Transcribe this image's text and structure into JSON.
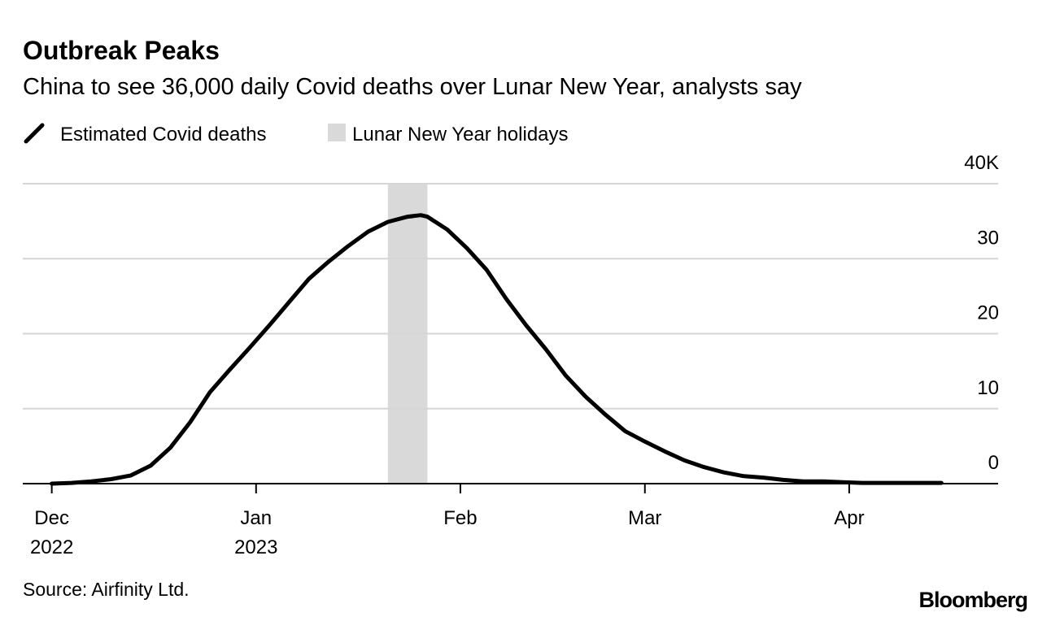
{
  "chart_data": {
    "type": "line",
    "title": "Outbreak Peaks",
    "subtitle": "China to see 36,000 daily Covid deaths over Lunar New Year, analysts say",
    "source": "Source: Airfinity Ltd.",
    "brand": "Bloomberg",
    "x": [
      0,
      3,
      6,
      9,
      12,
      15,
      18,
      21,
      24,
      27,
      30,
      33,
      36,
      39,
      42,
      45,
      48,
      51,
      54,
      56,
      57,
      60,
      63,
      66,
      69,
      72,
      75,
      78,
      81,
      84,
      87,
      90,
      93,
      96,
      99,
      102,
      105,
      108,
      111,
      114,
      117,
      120,
      123,
      126,
      129,
      132,
      135
    ],
    "series": [
      {
        "name": "Estimated Covid deaths",
        "color": "#000000",
        "values": [
          0,
          0.1,
          0.3,
          0.6,
          1.1,
          2.4,
          4.8,
          8.2,
          12.2,
          15.2,
          18.1,
          21.1,
          24.2,
          27.3,
          29.6,
          31.7,
          33.6,
          34.9,
          35.6,
          35.8,
          35.6,
          33.9,
          31.4,
          28.5,
          24.6,
          21.1,
          17.9,
          14.4,
          11.6,
          9.2,
          7.0,
          5.6,
          4.3,
          3.1,
          2.2,
          1.5,
          1.0,
          0.8,
          0.5,
          0.3,
          0.3,
          0.2,
          0.1,
          0.1,
          0.1,
          0.1,
          0.1
        ]
      }
    ],
    "bands": [
      {
        "name": "Lunar New Year holidays",
        "color": "#d9d9d9",
        "range": [
          51,
          57
        ]
      }
    ],
    "xlim": [
      -4.4,
      143.6
    ],
    "xticks": [
      {
        "value": 0,
        "label": "Dec 2022"
      },
      {
        "value": 31,
        "label": "Jan 2023"
      },
      {
        "value": 62,
        "label": "Feb"
      },
      {
        "value": 90,
        "label": "Mar"
      },
      {
        "value": 121,
        "label": "Apr"
      }
    ],
    "ylim": [
      0,
      40
    ],
    "yticks": [
      0,
      10,
      20,
      30,
      {
        "value": 40,
        "label": "40K"
      }
    ],
    "grid": true
  }
}
